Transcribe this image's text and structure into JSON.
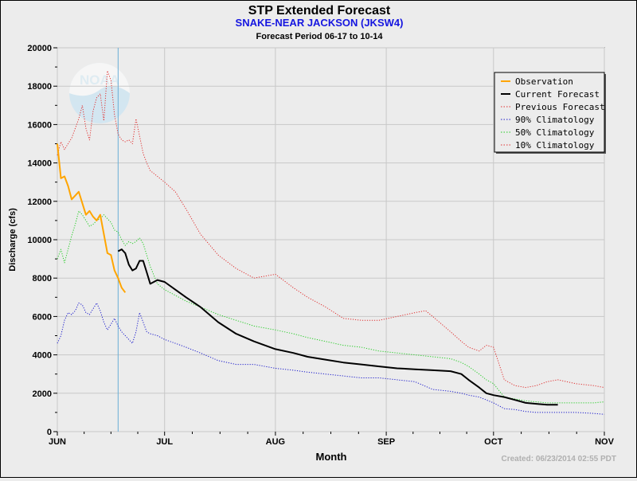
{
  "chart_data": {
    "type": "line",
    "title": "STP Extended Forecast",
    "subtitle": "SNAKE-NEAR JACKSON (JKSW4)",
    "period": "Forecast Period 06-17 to 10-14",
    "xlabel": "Month",
    "ylabel": "Discharge (cfs)",
    "ylim": [
      0,
      20000
    ],
    "yticks": [
      0,
      2000,
      4000,
      6000,
      8000,
      10000,
      12000,
      14000,
      16000,
      18000,
      20000
    ],
    "xlim": [
      0,
      153
    ],
    "xticks": [
      {
        "label": "JUN",
        "day": 0
      },
      {
        "label": "JUL",
        "day": 30
      },
      {
        "label": "AUG",
        "day": 61
      },
      {
        "label": "SEP",
        "day": 92
      },
      {
        "label": "OCT",
        "day": 122
      },
      {
        "label": "NOV",
        "day": 153
      }
    ],
    "forecast_start_day": 17,
    "grid": true,
    "legend_position": "top-right",
    "created": "Created: 06/23/2014 02:55 PDT",
    "logo": "NOAA",
    "series": [
      {
        "name": "Observation",
        "color": "#ffa500",
        "style": "solid",
        "width": 2,
        "x": [
          0,
          1,
          2,
          3,
          4,
          5,
          6,
          7,
          8,
          9,
          10,
          11,
          12,
          13,
          14,
          15,
          16,
          17,
          18,
          19,
          20,
          21,
          22
        ],
        "y": [
          15000,
          13200,
          13300,
          12800,
          12100,
          12300,
          12500,
          11900,
          11300,
          11500,
          11200,
          11000,
          11300,
          10300,
          9300,
          9200,
          8400,
          8000,
          7500,
          7250,
          null,
          null,
          null
        ]
      },
      {
        "name": "Current Forecast",
        "color": "#000000",
        "style": "solid",
        "width": 2,
        "x": [
          17,
          18,
          19,
          20,
          21,
          22,
          23,
          24,
          25,
          26,
          27,
          28,
          30,
          33,
          36,
          40,
          45,
          50,
          55,
          61,
          66,
          70,
          75,
          80,
          85,
          90,
          95,
          100,
          105,
          110,
          113,
          115,
          118,
          120,
          122,
          125,
          128,
          131,
          134,
          137,
          140
        ],
        "y": [
          9400,
          9500,
          9300,
          8700,
          8400,
          8500,
          8900,
          8900,
          8300,
          7700,
          7800,
          7900,
          7800,
          7400,
          7000,
          6500,
          5700,
          5100,
          4700,
          4300,
          4100,
          3900,
          3750,
          3600,
          3500,
          3400,
          3300,
          3250,
          3200,
          3150,
          3000,
          2700,
          2300,
          2000,
          1900,
          1800,
          1650,
          1500,
          1450,
          1400,
          1400
        ]
      },
      {
        "name": "Previous Forecast",
        "color": "#e03030",
        "style": "dotted",
        "width": 1,
        "x": [],
        "y": []
      },
      {
        "name": "90% Climatology",
        "color": "#1a1acc",
        "style": "dotted",
        "width": 1,
        "x": [
          0,
          1,
          2,
          3,
          4,
          5,
          6,
          7,
          8,
          9,
          10,
          11,
          12,
          13,
          14,
          15,
          16,
          17,
          18,
          19,
          20,
          21,
          22,
          23,
          24,
          25,
          26,
          28,
          30,
          33,
          36,
          40,
          45,
          50,
          55,
          61,
          66,
          70,
          75,
          80,
          85,
          90,
          95,
          100,
          105,
          110,
          113,
          115,
          118,
          120,
          122,
          125,
          128,
          131,
          134,
          137,
          140,
          145,
          150,
          153
        ],
        "y": [
          4600,
          5000,
          5800,
          6200,
          6100,
          6300,
          6700,
          6600,
          6200,
          6100,
          6400,
          6700,
          6300,
          5700,
          5300,
          5600,
          5900,
          5500,
          5200,
          5000,
          4800,
          4600,
          5200,
          6200,
          5700,
          5200,
          5100,
          5000,
          4800,
          4600,
          4400,
          4100,
          3700,
          3500,
          3500,
          3300,
          3200,
          3100,
          3000,
          2900,
          2800,
          2800,
          2700,
          2600,
          2200,
          2100,
          2000,
          1900,
          1800,
          1650,
          1500,
          1200,
          1150,
          1050,
          1000,
          1000,
          1000,
          1000,
          950,
          900
        ]
      },
      {
        "name": "50% Climatology",
        "color": "#22cc22",
        "style": "dotted",
        "width": 1,
        "x": [
          0,
          1,
          2,
          3,
          4,
          5,
          6,
          7,
          8,
          9,
          10,
          11,
          12,
          13,
          14,
          15,
          16,
          17,
          18,
          19,
          20,
          21,
          22,
          23,
          24,
          25,
          26,
          28,
          30,
          33,
          36,
          40,
          45,
          50,
          55,
          61,
          66,
          70,
          75,
          80,
          85,
          90,
          95,
          100,
          105,
          110,
          113,
          115,
          118,
          120,
          122,
          125,
          128,
          131,
          134,
          137,
          140,
          145,
          150,
          153
        ],
        "y": [
          9000,
          9500,
          8800,
          9500,
          10200,
          10800,
          11500,
          11300,
          11000,
          10700,
          10800,
          11000,
          11100,
          11300,
          11100,
          10900,
          10500,
          10400,
          10000,
          9700,
          9900,
          9800,
          9900,
          10100,
          9800,
          9200,
          8600,
          7700,
          7400,
          7100,
          6800,
          6500,
          6100,
          5800,
          5500,
          5300,
          5100,
          4900,
          4700,
          4500,
          4400,
          4200,
          4100,
          4000,
          3900,
          3800,
          3600,
          3400,
          3000,
          2700,
          2500,
          1800,
          1700,
          1600,
          1550,
          1500,
          1500,
          1500,
          1500,
          1550
        ]
      },
      {
        "name": "10% Climatology",
        "color": "#e03030",
        "style": "dotted",
        "width": 1,
        "x": [
          0,
          1,
          2,
          3,
          4,
          5,
          6,
          7,
          8,
          9,
          10,
          11,
          12,
          13,
          14,
          15,
          16,
          17,
          18,
          19,
          20,
          21,
          22,
          23,
          24,
          25,
          26,
          28,
          30,
          33,
          36,
          40,
          45,
          50,
          55,
          61,
          66,
          70,
          75,
          80,
          85,
          90,
          95,
          100,
          103,
          105,
          110,
          113,
          115,
          118,
          120,
          122,
          125,
          128,
          131,
          134,
          137,
          140,
          145,
          150,
          153
        ],
        "y": [
          14400,
          15100,
          14700,
          15000,
          15300,
          15800,
          16300,
          17000,
          15800,
          15200,
          16700,
          17400,
          17600,
          16200,
          18800,
          18300,
          16500,
          15500,
          15200,
          15100,
          15200,
          15000,
          16300,
          15400,
          14500,
          14000,
          13600,
          13300,
          13000,
          12500,
          11600,
          10300,
          9200,
          8500,
          8000,
          8200,
          7500,
          7000,
          6500,
          5900,
          5800,
          5800,
          6000,
          6200,
          6300,
          6000,
          5200,
          4700,
          4400,
          4200,
          4500,
          4400,
          2700,
          2400,
          2300,
          2400,
          2600,
          2700,
          2500,
          2400,
          2300
        ]
      }
    ]
  }
}
